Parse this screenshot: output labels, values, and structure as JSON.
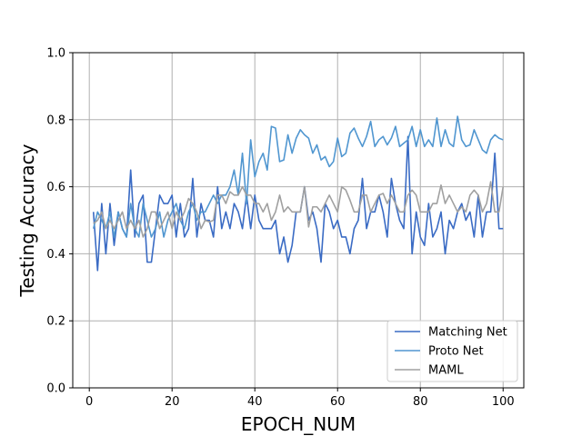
{
  "chart_data": {
    "type": "line",
    "xlabel": "EPOCH_NUM",
    "ylabel": "Testing Accuracy",
    "xlim": [
      -4,
      105
    ],
    "ylim": [
      0.0,
      1.0
    ],
    "xticks": [
      0,
      20,
      40,
      60,
      80,
      100
    ],
    "xtick_labels": [
      "0",
      "20",
      "40",
      "60",
      "80",
      "100"
    ],
    "yticks": [
      0.0,
      0.2,
      0.4,
      0.6,
      0.8,
      1.0
    ],
    "ytick_labels": [
      "0.0",
      "0.2",
      "0.4",
      "0.6",
      "0.8",
      "1.0"
    ],
    "grid": true,
    "legend_position": "bottom-right",
    "x": [
      1,
      2,
      3,
      4,
      5,
      6,
      7,
      8,
      9,
      10,
      11,
      12,
      13,
      14,
      15,
      16,
      17,
      18,
      19,
      20,
      21,
      22,
      23,
      24,
      25,
      26,
      27,
      28,
      29,
      30,
      31,
      32,
      33,
      34,
      35,
      36,
      37,
      38,
      39,
      40,
      41,
      42,
      43,
      44,
      45,
      46,
      47,
      48,
      49,
      50,
      51,
      52,
      53,
      54,
      55,
      56,
      57,
      58,
      59,
      60,
      61,
      62,
      63,
      64,
      65,
      66,
      67,
      68,
      69,
      70,
      71,
      72,
      73,
      74,
      75,
      76,
      77,
      78,
      79,
      80,
      81,
      82,
      83,
      84,
      85,
      86,
      87,
      88,
      89,
      90,
      91,
      92,
      93,
      94,
      95,
      96,
      97,
      98,
      99,
      100
    ],
    "series": [
      {
        "name": "Matching Net",
        "color": "#3a6bc4",
        "values": [
          0.525,
          0.35,
          0.55,
          0.4,
          0.55,
          0.425,
          0.525,
          0.475,
          0.45,
          0.65,
          0.45,
          0.55,
          0.575,
          0.375,
          0.375,
          0.475,
          0.575,
          0.55,
          0.55,
          0.575,
          0.45,
          0.55,
          0.45,
          0.475,
          0.625,
          0.45,
          0.55,
          0.5,
          0.5,
          0.45,
          0.6,
          0.475,
          0.525,
          0.475,
          0.55,
          0.525,
          0.475,
          0.575,
          0.475,
          0.575,
          0.5,
          0.475,
          0.475,
          0.475,
          0.5,
          0.4,
          0.45,
          0.375,
          0.425,
          0.525,
          0.525,
          0.6,
          0.5,
          0.525,
          0.475,
          0.375,
          0.55,
          0.525,
          0.475,
          0.5,
          0.45,
          0.45,
          0.4,
          0.475,
          0.5,
          0.625,
          0.475,
          0.525,
          0.525,
          0.575,
          0.525,
          0.45,
          0.625,
          0.55,
          0.5,
          0.475,
          0.75,
          0.4,
          0.525,
          0.45,
          0.425,
          0.55,
          0.45,
          0.475,
          0.525,
          0.4,
          0.5,
          0.475,
          0.525,
          0.55,
          0.5,
          0.525,
          0.45,
          0.575,
          0.45,
          0.525,
          0.525,
          0.7,
          0.475,
          0.475
        ]
      },
      {
        "name": "Proto Net",
        "color": "#5096d0",
        "values": [
          0.475,
          0.525,
          0.5,
          0.475,
          0.525,
          0.45,
          0.525,
          0.475,
          0.45,
          0.55,
          0.475,
          0.45,
          0.55,
          0.5,
          0.45,
          0.475,
          0.525,
          0.45,
          0.5,
          0.525,
          0.55,
          0.5,
          0.475,
          0.525,
          0.55,
          0.5,
          0.525,
          0.525,
          0.55,
          0.575,
          0.55,
          0.575,
          0.575,
          0.6,
          0.65,
          0.575,
          0.7,
          0.55,
          0.74,
          0.63,
          0.675,
          0.7,
          0.65,
          0.78,
          0.775,
          0.675,
          0.68,
          0.755,
          0.7,
          0.745,
          0.77,
          0.755,
          0.745,
          0.7,
          0.725,
          0.68,
          0.69,
          0.66,
          0.675,
          0.745,
          0.69,
          0.7,
          0.76,
          0.775,
          0.745,
          0.72,
          0.75,
          0.795,
          0.72,
          0.74,
          0.75,
          0.725,
          0.745,
          0.78,
          0.72,
          0.73,
          0.74,
          0.78,
          0.72,
          0.77,
          0.72,
          0.74,
          0.72,
          0.805,
          0.72,
          0.77,
          0.73,
          0.72,
          0.81,
          0.74,
          0.72,
          0.725,
          0.77,
          0.74,
          0.71,
          0.7,
          0.74,
          0.755,
          0.745,
          0.74
        ]
      },
      {
        "name": "MAML",
        "color": "#a0a0a0",
        "values": [
          0.49,
          0.5,
          0.525,
          0.475,
          0.5,
          0.475,
          0.5,
          0.525,
          0.475,
          0.5,
          0.475,
          0.5,
          0.45,
          0.475,
          0.525,
          0.525,
          0.475,
          0.5,
          0.525,
          0.475,
          0.525,
          0.5,
          0.525,
          0.565,
          0.55,
          0.525,
          0.475,
          0.5,
          0.495,
          0.5,
          0.575,
          0.575,
          0.55,
          0.585,
          0.575,
          0.575,
          0.6,
          0.575,
          0.575,
          0.55,
          0.55,
          0.525,
          0.55,
          0.5,
          0.525,
          0.575,
          0.525,
          0.54,
          0.525,
          0.525,
          0.525,
          0.6,
          0.48,
          0.54,
          0.54,
          0.525,
          0.55,
          0.575,
          0.55,
          0.525,
          0.6,
          0.59,
          0.56,
          0.525,
          0.525,
          0.575,
          0.575,
          0.525,
          0.55,
          0.575,
          0.58,
          0.55,
          0.575,
          0.55,
          0.525,
          0.525,
          0.575,
          0.59,
          0.575,
          0.525,
          0.525,
          0.525,
          0.55,
          0.55,
          0.605,
          0.55,
          0.575,
          0.55,
          0.525,
          0.54,
          0.525,
          0.575,
          0.59,
          0.575,
          0.525,
          0.55,
          0.615,
          0.525,
          0.525,
          0.6
        ]
      }
    ]
  }
}
